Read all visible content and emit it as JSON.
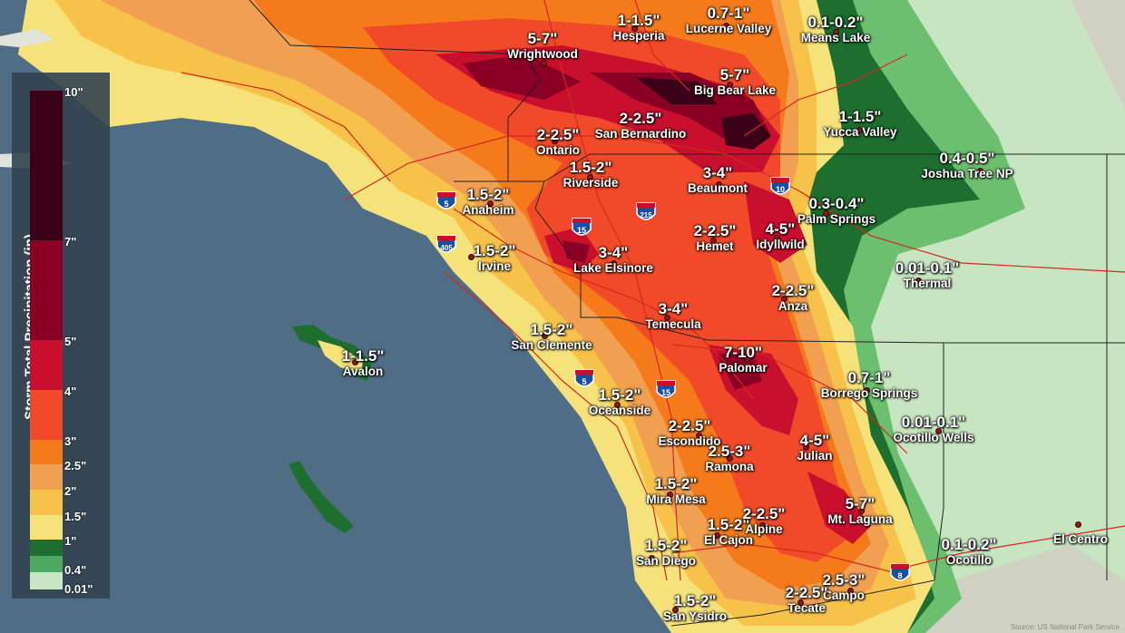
{
  "map": {
    "legend_title": "Storm Total Precipitation (in)",
    "credit": "Source: US National Park Service",
    "legend": [
      {
        "label": "10\"",
        "color": "#3a0018"
      },
      {
        "label": "7\"",
        "color": "#8a0024"
      },
      {
        "label": "5\"",
        "color": "#c8102e"
      },
      {
        "label": "4\"",
        "color": "#f04a2a"
      },
      {
        "label": "3\"",
        "color": "#f57a1c"
      },
      {
        "label": "2.5\"",
        "color": "#f0a050"
      },
      {
        "label": "2\"",
        "color": "#f7c24a"
      },
      {
        "label": "1.5\"",
        "color": "#f5e27a"
      },
      {
        "label": "1\"",
        "color": "#1e6e30"
      },
      {
        "label": "0.4\"",
        "color": "#4ea860"
      },
      {
        "label": "0.01\"",
        "color": "#c8e6c4"
      }
    ],
    "locations": [
      {
        "amount": "1-1.5\"",
        "name": "Hesperia"
      },
      {
        "amount": "0.7-1\"",
        "name": "Lucerne Valley"
      },
      {
        "amount": "0.1-0.2\"",
        "name": "Means Lake"
      },
      {
        "amount": "5-7\"",
        "name": "Wrightwood"
      },
      {
        "amount": "5-7\"",
        "name": "Big Bear Lake"
      },
      {
        "amount": "2-2.5\"",
        "name": "San Bernardino"
      },
      {
        "amount": "1-1.5\"",
        "name": "Yucca Valley"
      },
      {
        "amount": "2-2.5\"",
        "name": "Ontario"
      },
      {
        "amount": "1.5-2\"",
        "name": "Riverside"
      },
      {
        "amount": "0.4-0.5\"",
        "name": "Joshua Tree NP"
      },
      {
        "amount": "3-4\"",
        "name": "Beaumont"
      },
      {
        "amount": "1.5-2\"",
        "name": "Anaheim"
      },
      {
        "amount": "0.3-0.4\"",
        "name": "Palm Springs"
      },
      {
        "amount": "2-2.5\"",
        "name": "Hemet"
      },
      {
        "amount": "4-5\"",
        "name": "Idyllwild"
      },
      {
        "amount": "1.5-2\"",
        "name": "Irvine"
      },
      {
        "amount": "3-4\"",
        "name": "Lake Elsinore"
      },
      {
        "amount": "0.01-0.1\"",
        "name": "Thermal"
      },
      {
        "amount": "2-2.5\"",
        "name": "Anza"
      },
      {
        "amount": "3-4\"",
        "name": "Temecula"
      },
      {
        "amount": "1.5-2\"",
        "name": "San Clemente"
      },
      {
        "amount": "1-1.5\"",
        "name": "Avalon"
      },
      {
        "amount": "7-10\"",
        "name": "Palomar"
      },
      {
        "amount": "0.7-1\"",
        "name": "Borrego Springs"
      },
      {
        "amount": "1.5-2\"",
        "name": "Oceanside"
      },
      {
        "amount": "0.01-0.1\"",
        "name": "Ocotillo Wells"
      },
      {
        "amount": "2-2.5\"",
        "name": "Escondido"
      },
      {
        "amount": "2.5-3\"",
        "name": "Ramona"
      },
      {
        "amount": "4-5\"",
        "name": "Julian"
      },
      {
        "amount": "1.5-2\"",
        "name": "Mira Mesa"
      },
      {
        "amount": "5-7\"",
        "name": "Mt. Laguna"
      },
      {
        "amount": "1.5-2\"",
        "name": "El Cajon"
      },
      {
        "amount": "2-2.5\"",
        "name": "Alpine"
      },
      {
        "amount": "1.5-2\"",
        "name": "San Diego"
      },
      {
        "amount": "0.1-0.2\"",
        "name": "Ocotillo"
      },
      {
        "amount": "",
        "name": "El Centro"
      },
      {
        "amount": "2.5-3\"",
        "name": "Campo"
      },
      {
        "amount": "2-2.5\"",
        "name": "Tecate"
      },
      {
        "amount": "1.5-2\"",
        "name": "San Ysidro"
      }
    ],
    "highways": [
      "5",
      "405",
      "15",
      "215",
      "10",
      "15",
      "5",
      "8"
    ]
  }
}
